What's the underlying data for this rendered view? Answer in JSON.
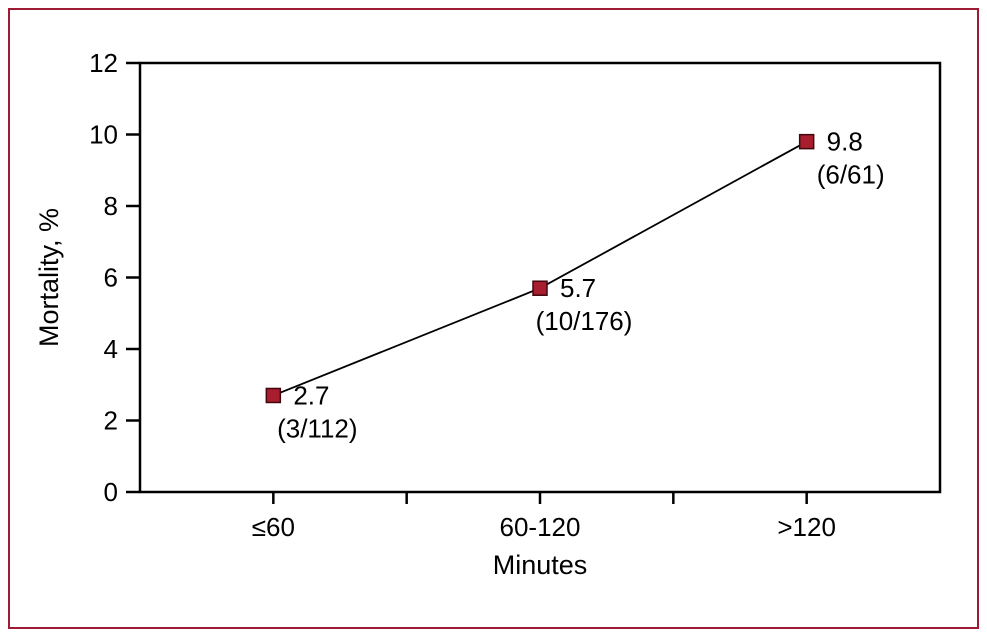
{
  "frame": {
    "border_color": "#9d1b33",
    "background_color": "#ffffff"
  },
  "chart_data": {
    "type": "line",
    "categories": [
      "≤60",
      "60-120",
      ">120"
    ],
    "values": [
      2.7,
      5.7,
      9.8
    ],
    "point_labels": [
      "2.7",
      "5.7",
      "9.8"
    ],
    "point_sublabels": [
      "(3/112)",
      "(10/176)",
      "(6/61)"
    ],
    "title": "",
    "xlabel": "Minutes",
    "ylabel": "Mortality, %",
    "ylim": [
      0,
      12
    ],
    "ytick_step": 2,
    "ytick_labels": [
      "0",
      "2",
      "4",
      "6",
      "8",
      "10",
      "12"
    ],
    "marker_shape": "square",
    "marker_color": "#a81e2e",
    "marker_edge_color": "#42060f",
    "line_color": "#000000",
    "axis_color": "#000000",
    "value_label_color": "#000000",
    "sublabel_color": "#1a1a5e",
    "grid": false,
    "legend": "none"
  }
}
